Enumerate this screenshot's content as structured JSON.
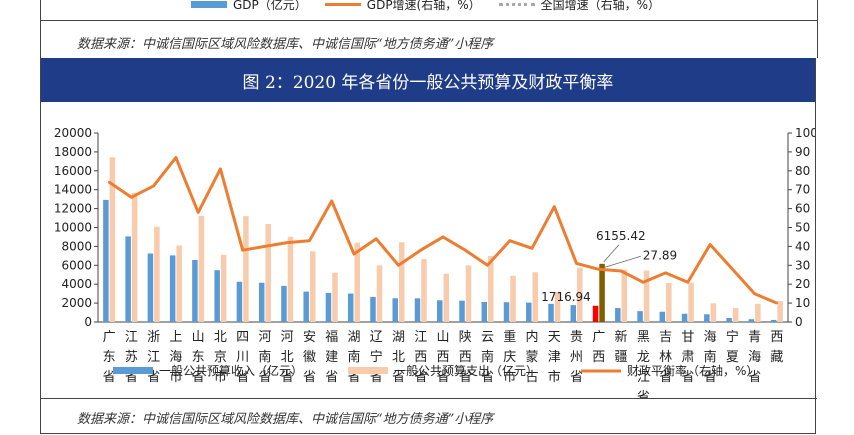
{
  "top_legend": {
    "gdp": "GDP（亿元）",
    "gdp_growth": "GDP增速(右轴，%）",
    "national_growth": "全国增速（右轴，%）"
  },
  "source_text": "数据来源：中诚信国际区域风险数据库、中诚信国际“地方债务通”小程序",
  "title": "图 2：2020 年各省份一般公共预算及财政平衡率",
  "colors": {
    "revenue": "#5b9bd5",
    "expenditure": "#f8cbad",
    "ratio": "#ed7d31",
    "highlight_revenue": "#ff0000",
    "highlight_expenditure": "#7f6000",
    "title_bg": "#1f3c88"
  },
  "chart_data": {
    "type": "bar",
    "categories": [
      "广东省",
      "江苏省",
      "浙江省",
      "上海市",
      "山东省",
      "北京市",
      "四川省",
      "河南省",
      "河北省",
      "安徽省",
      "福建省",
      "湖南省",
      "辽宁省",
      "湖北省",
      "江西省",
      "山西省",
      "陕西省",
      "云南省",
      "重庆市",
      "内蒙古",
      "天津市",
      "贵州省",
      "广西",
      "新疆",
      "黑龙江省",
      "吉林省",
      "甘肃省",
      "海南省",
      "宁夏",
      "青海省",
      "西藏"
    ],
    "series": [
      {
        "name": "一般公共预算收入（亿元）",
        "axis": "left",
        "values": [
          12924,
          9059,
          7248,
          7046,
          6560,
          5484,
          4261,
          4155,
          3826,
          3216,
          3079,
          3009,
          2655,
          2512,
          2508,
          2297,
          2257,
          2117,
          2095,
          2051,
          1923,
          1787,
          1716.94,
          1477,
          1152,
          1085,
          874,
          816,
          419,
          298,
          221
        ]
      },
      {
        "name": "一般公共预算支出（亿元）",
        "axis": "left",
        "values": [
          17430,
          13682,
          10082,
          8102,
          11233,
          7116,
          11200,
          10373,
          9022,
          7474,
          5216,
          8403,
          6002,
          8440,
          6667,
          5111,
          5981,
          6974,
          4893,
          5268,
          3151,
          5739,
          6155.42,
          5540,
          5449,
          4127,
          4155,
          1974,
          1483,
          1931,
          2207
        ]
      },
      {
        "name": "财政平衡率（右轴，%）",
        "axis": "right",
        "type": "line",
        "values": [
          74,
          66,
          72,
          87,
          58,
          81,
          38,
          40,
          42,
          43,
          64,
          36,
          44,
          30,
          38,
          45,
          38,
          30,
          43,
          39,
          61,
          31,
          27.89,
          27,
          21,
          26,
          21,
          41,
          28,
          15,
          10
        ]
      }
    ],
    "annotations": [
      "1716.94",
      "6155.42",
      "27.89"
    ],
    "highlight_category": "广西",
    "y_left": {
      "min": 0,
      "max": 20000,
      "step": 2000,
      "ticks": [
        "0",
        "2000",
        "4000",
        "6000",
        "8000",
        "10000",
        "12000",
        "14000",
        "16000",
        "18000",
        "20000"
      ]
    },
    "y_right": {
      "min": 0,
      "max": 100,
      "step": 10,
      "ticks": [
        "0",
        "10",
        "20",
        "30",
        "40",
        "50",
        "60",
        "70",
        "80",
        "90",
        "100"
      ]
    },
    "legend": [
      "一般公共预算收入（亿元）",
      "一般公共预算支出（亿元）",
      "财政平衡率（右轴，%）"
    ],
    "legend_position": "bottom",
    "grid": false
  }
}
